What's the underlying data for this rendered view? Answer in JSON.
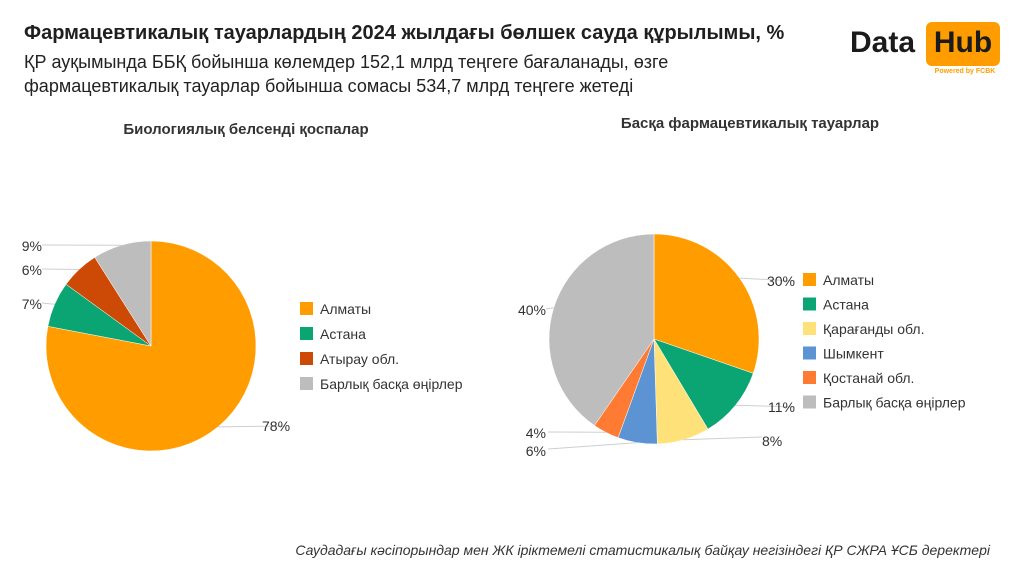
{
  "header": {
    "title": "Фармацевтикалық тауарлардың 2024 жылдағы бөлшек сауда құрылымы, %",
    "subtitle_line1": "ҚР ауқымында ББҚ бойынша көлемдер 152,1 млрд теңгеге бағаланады, өзге",
    "subtitle_line2": "фармацевтикалық тауарлар бойынша сомасы 534,7 млрд теңгеге жетеді"
  },
  "logo": {
    "data": "Data",
    "hub": "Hub",
    "powered": "Powered by FCBK"
  },
  "footer": {
    "source": "Саудадағы кәсіпорындар мен ЖК іріктемелі статистикалық байқау негізіндегі ҚР СЖРА ҰСБ деректері"
  },
  "chart_data": [
    {
      "type": "pie",
      "title": "Биологиялық белсенді қоспалар",
      "categories": [
        "Алматы",
        "Астана",
        "Атырау обл.",
        "Барлық басқа өңірлер"
      ],
      "values": [
        78,
        7,
        6,
        9
      ],
      "value_labels": [
        "78%",
        "7%",
        "6%",
        "9%"
      ],
      "colors": [
        "#ff9c00",
        "#0aa573",
        "#cc4a06",
        "#bdbdbd"
      ],
      "legend_position": "right"
    },
    {
      "type": "pie",
      "title": "Басқа фармацевтикалық тауарлар",
      "categories": [
        "Алматы",
        "Астана",
        "Қарағанды обл.",
        "Шымкент",
        "Қостанай обл.",
        "Барлық басқа өңірлер"
      ],
      "values": [
        30,
        11,
        8,
        6,
        4,
        40
      ],
      "value_labels": [
        "30%",
        "11%",
        "8%",
        "6%",
        "4%",
        "40%"
      ],
      "colors": [
        "#ff9c00",
        "#0aa573",
        "#ffe17a",
        "#5b93d3",
        "#ff7a33",
        "#bdbdbd"
      ],
      "legend_position": "right"
    }
  ]
}
